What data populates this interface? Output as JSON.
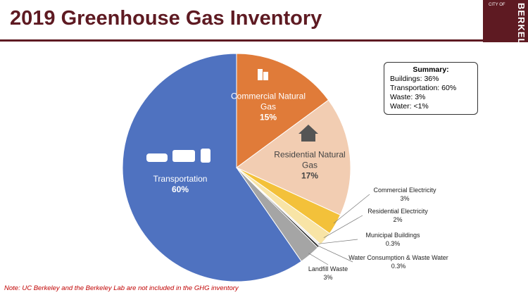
{
  "header": {
    "title": "2019 Greenhouse Gas Inventory",
    "logo_top": "CITY OF",
    "logo_main": "BERKELEY"
  },
  "chart_data": {
    "type": "pie",
    "categories": [
      "Commercial Natural Gas",
      "Residential Natural Gas",
      "Commercial Electricity",
      "Residential Electricity",
      "Municipal Buildings",
      "Water Consumption & Waste Water",
      "Landfill Waste",
      "Transportation"
    ],
    "values": [
      15,
      17,
      3,
      2,
      0.3,
      0.3,
      3,
      60
    ],
    "value_labels": [
      "15%",
      "17%",
      "3%",
      "2%",
      "0.3%",
      "0.3%",
      "3%",
      "60%"
    ],
    "colors": [
      "#e07b39",
      "#f2cdb2",
      "#f3c13a",
      "#f8e4a6",
      "#ececec",
      "#262626",
      "#a5a5a5",
      "#4f72c0"
    ]
  },
  "summary": {
    "title": "Summary:",
    "lines": [
      "Buildings: 36%",
      "Transportation: 60%",
      "Waste: 3%",
      "Water: <1%"
    ]
  },
  "note": "Note: UC Berkeley and the Berkeley Lab are not included in the GHG inventory"
}
